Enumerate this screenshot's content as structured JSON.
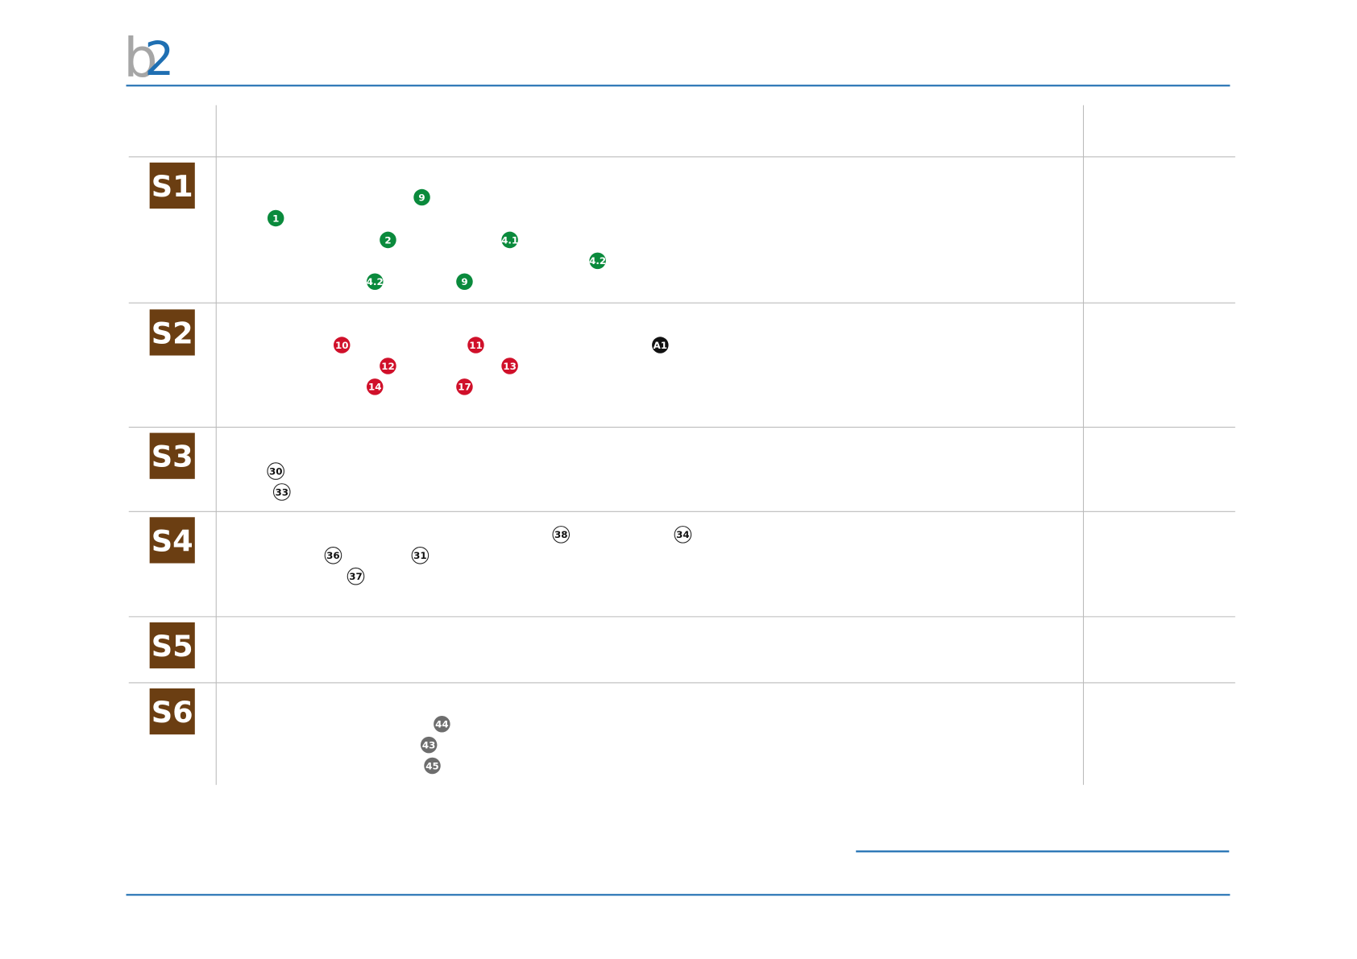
{
  "logo": {
    "letter": "b",
    "digit": "2"
  },
  "sections": [
    {
      "label": "S1",
      "markers": [
        {
          "text": "9",
          "kind": "green"
        },
        {
          "text": "1",
          "kind": "green"
        },
        {
          "text": "2",
          "kind": "green"
        },
        {
          "text": "4.1",
          "kind": "green"
        },
        {
          "text": "4.2",
          "kind": "green"
        },
        {
          "text": "4.2",
          "kind": "green"
        },
        {
          "text": "9",
          "kind": "green"
        }
      ]
    },
    {
      "label": "S2",
      "markers": [
        {
          "text": "10",
          "kind": "red"
        },
        {
          "text": "11",
          "kind": "red"
        },
        {
          "text": "A1",
          "kind": "black"
        },
        {
          "text": "12",
          "kind": "red"
        },
        {
          "text": "13",
          "kind": "red"
        },
        {
          "text": "14",
          "kind": "red"
        },
        {
          "text": "17",
          "kind": "red"
        }
      ]
    },
    {
      "label": "S3",
      "markers": [
        {
          "text": "30",
          "kind": "outline"
        },
        {
          "text": "33",
          "kind": "outline"
        }
      ]
    },
    {
      "label": "S4",
      "markers": [
        {
          "text": "38",
          "kind": "outline"
        },
        {
          "text": "34",
          "kind": "outline"
        },
        {
          "text": "36",
          "kind": "outline"
        },
        {
          "text": "31",
          "kind": "outline"
        },
        {
          "text": "37",
          "kind": "outline"
        }
      ]
    },
    {
      "label": "S5",
      "markers": []
    },
    {
      "label": "S6",
      "markers": [
        {
          "text": "44",
          "kind": "gray"
        },
        {
          "text": "43",
          "kind": "gray"
        },
        {
          "text": "45",
          "kind": "gray"
        }
      ]
    }
  ]
}
